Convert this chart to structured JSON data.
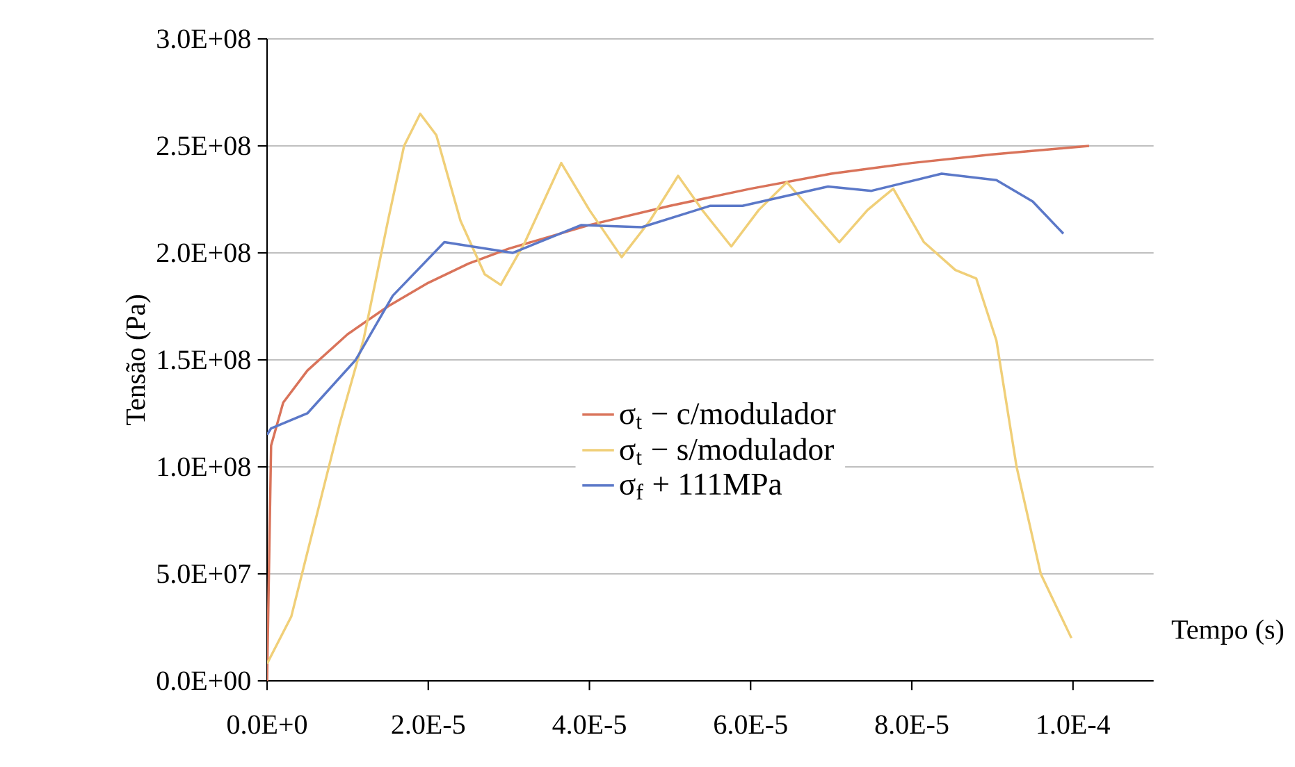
{
  "chart_data": {
    "type": "line",
    "xlabel": "Tempo (s)",
    "ylabel": "Tensão (Pa)",
    "xlim": [
      0,
      0.00011
    ],
    "ylim": [
      0,
      300000000.0
    ],
    "xticks": [
      {
        "value": 0,
        "label": "0.0E+0"
      },
      {
        "value": 2e-05,
        "label": "2.0E-5"
      },
      {
        "value": 4e-05,
        "label": "4.0E-5"
      },
      {
        "value": 6e-05,
        "label": "6.0E-5"
      },
      {
        "value": 8e-05,
        "label": "8.0E-5"
      },
      {
        "value": 0.0001,
        "label": "1.0E-4"
      }
    ],
    "yticks": [
      {
        "value": 0,
        "label": "0.0E+00"
      },
      {
        "value": 50000000.0,
        "label": "5.0E+07"
      },
      {
        "value": 100000000.0,
        "label": "1.0E+08"
      },
      {
        "value": 150000000.0,
        "label": "1.5E+08"
      },
      {
        "value": 200000000.0,
        "label": "2.0E+08"
      },
      {
        "value": 250000000.0,
        "label": "2.5E+08"
      },
      {
        "value": 300000000.0,
        "label": "3.0E+08"
      }
    ],
    "grid": "y",
    "legend": "center",
    "marker": "none",
    "line_style": "solid",
    "series": [
      {
        "name": "σ$_{t}$ − c/modulador",
        "color": "#d9735a",
        "x": [
          0,
          5e-07,
          2e-06,
          5e-06,
          1e-05,
          1.5e-05,
          2e-05,
          2.5e-05,
          3e-05,
          4e-05,
          5e-05,
          6e-05,
          7e-05,
          8e-05,
          9e-05,
          0.000102
        ],
        "values": [
          0,
          110000000.0,
          130000000.0,
          145000000.0,
          162000000.0,
          175000000.0,
          186000000.0,
          195000000.0,
          202000000.0,
          213000000.0,
          222000000.0,
          230000000.0,
          237000000.0,
          242000000.0,
          246000000.0,
          250000000.0
        ]
      },
      {
        "name": "σ$_{t}$ − s/modulador",
        "color": "#f0cf78",
        "x": [
          0,
          3e-06,
          6e-06,
          9e-06,
          1.2e-05,
          1.5e-05,
          1.7e-05,
          1.9e-05,
          2.1e-05,
          2.4e-05,
          2.7e-05,
          2.9e-05,
          3.2e-05,
          3.65e-05,
          4e-05,
          4.4e-05,
          4.75e-05,
          5.1e-05,
          5.4e-05,
          5.76e-05,
          6.1e-05,
          6.45e-05,
          6.8e-05,
          7.1e-05,
          7.45e-05,
          7.77e-05,
          8.15e-05,
          8.54e-05,
          8.8e-05,
          9.05e-05,
          9.3e-05,
          9.6e-05,
          9.98e-05
        ],
        "values": [
          8000000.0,
          30000000.0,
          75000000.0,
          120000000.0,
          160000000.0,
          215000000.0,
          250000000.0,
          265000000.0,
          255000000.0,
          215000000.0,
          190000000.0,
          185000000.0,
          205000000.0,
          242000000.0,
          220000000.0,
          198000000.0,
          215000000.0,
          236000000.0,
          220000000.0,
          203000000.0,
          220000000.0,
          233000000.0,
          218000000.0,
          205000000.0,
          220000000.0,
          230000000.0,
          205000000.0,
          192000000.0,
          188000000.0,
          159000000.0,
          100000000.0,
          50000000.0,
          20000000.0
        ]
      },
      {
        "name": "σ$_{f}$ + 111MPa",
        "color": "#5b78c8",
        "x": [
          0,
          5e-07,
          5e-06,
          1.1e-05,
          1.56e-05,
          2.2e-05,
          3.05e-05,
          3.9e-05,
          4.65e-05,
          5.5e-05,
          5.9e-05,
          6.96e-05,
          7.5e-05,
          8.37e-05,
          9.05e-05,
          9.5e-05,
          9.88e-05
        ],
        "values": [
          115000000.0,
          118000000.0,
          125000000.0,
          150000000.0,
          180000000.0,
          205000000.0,
          200000000.0,
          213000000.0,
          212000000.0,
          222000000.0,
          222000000.0,
          231000000.0,
          229000000.0,
          237000000.0,
          234000000.0,
          224000000.0,
          209000000.0
        ]
      }
    ]
  }
}
